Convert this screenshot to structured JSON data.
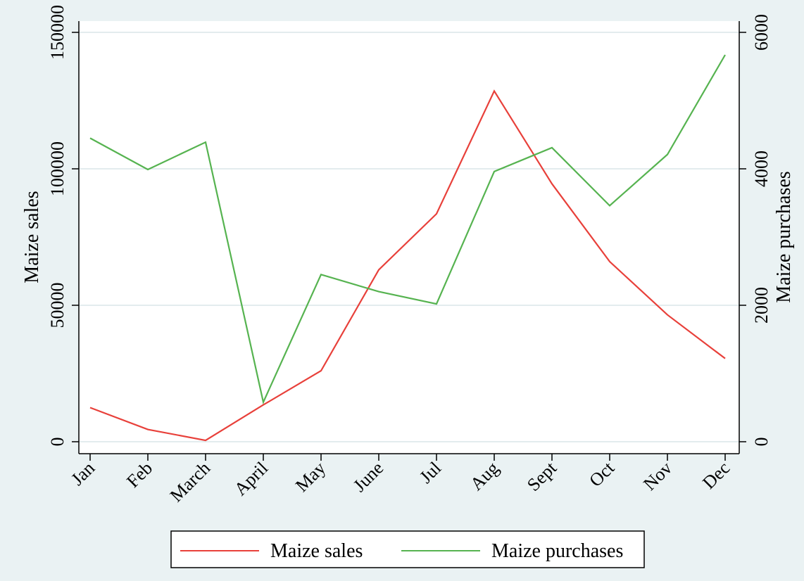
{
  "chart_data": {
    "type": "line",
    "categories": [
      "Jan",
      "Feb",
      "March",
      "April",
      "May",
      "June",
      "Jul",
      "Aug",
      "Sept",
      "Oct",
      "Nov",
      "Dec"
    ],
    "series": [
      {
        "name": "Maize sales",
        "axis": "left",
        "color": "#e8403a",
        "values": [
          12500,
          4500,
          500,
          13500,
          26000,
          63000,
          83500,
          128500,
          94500,
          66000,
          46500,
          30500
        ]
      },
      {
        "name": "Maize purchases",
        "axis": "right",
        "color": "#56b350",
        "values": [
          4450,
          3990,
          4390,
          580,
          2450,
          2200,
          2020,
          3960,
          4310,
          3460,
          4210,
          5670
        ]
      }
    ],
    "ylabel_left": "Maize sales",
    "ylabel_right": "Maize purchases",
    "ylim_left": [
      0,
      150000
    ],
    "ylim_right": [
      0,
      6000
    ],
    "yticks_left": [
      "0",
      "50000",
      "100000",
      "150000"
    ],
    "yticks_right": [
      "0",
      "2000",
      "4000",
      "6000"
    ],
    "grid": true,
    "legend_position": "bottom",
    "background_color": "#eaf2f3",
    "plot_background_color": "#ffffff"
  }
}
